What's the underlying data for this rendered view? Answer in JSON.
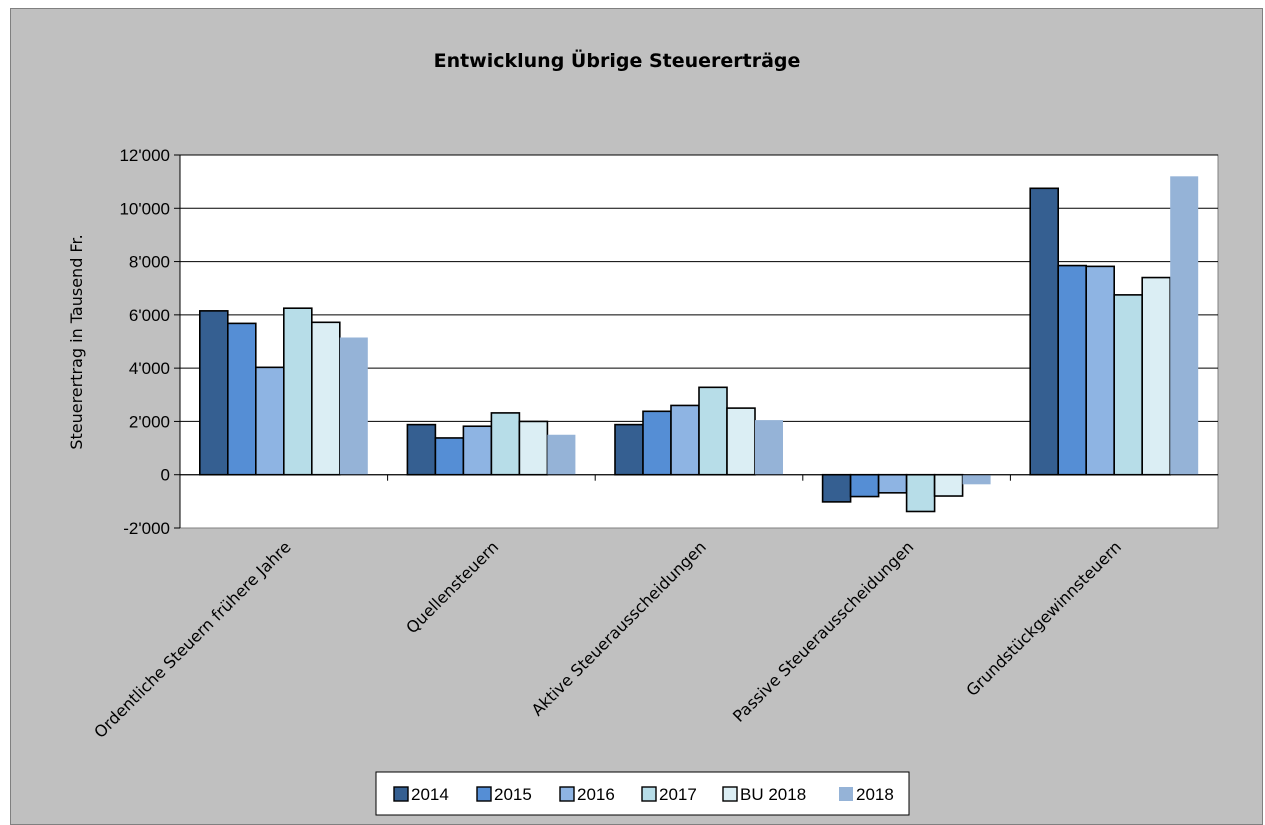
{
  "chart_data": {
    "type": "bar",
    "title": "Entwicklung Übrige Steuererträge",
    "ylabel": "Steuerertrag in Tausend Fr.",
    "xlabel": "",
    "ylim": [
      -2000,
      12000
    ],
    "yticks": [
      -2000,
      0,
      2000,
      4000,
      6000,
      8000,
      10000,
      12000
    ],
    "ytick_labels": [
      "-2'000",
      "0",
      "2'000",
      "4'000",
      "6'000",
      "8'000",
      "10'000",
      "12'000"
    ],
    "categories": [
      "Ordentliche Steuern frühere Jahre",
      "Quellensteuern",
      "Aktive Steuerausscheidungen",
      "Passive Steuerausscheidungen",
      "Grundstückgewinnsteuern"
    ],
    "series": [
      {
        "name": "2014",
        "color": "#355f91",
        "outline": true,
        "values": [
          6150,
          1880,
          1880,
          -1020,
          10750
        ]
      },
      {
        "name": "2015",
        "color": "#558ed5",
        "outline": true,
        "values": [
          5680,
          1380,
          2380,
          -820,
          7850
        ]
      },
      {
        "name": "2016",
        "color": "#8eb4e3",
        "outline": true,
        "values": [
          4030,
          1820,
          2600,
          -680,
          7820
        ]
      },
      {
        "name": "2017",
        "color": "#b7dde8",
        "outline": true,
        "values": [
          6250,
          2320,
          3280,
          -1380,
          6750
        ]
      },
      {
        "name": "BU 2018",
        "color": "#dbeef4",
        "outline": true,
        "values": [
          5720,
          2000,
          2500,
          -800,
          7400
        ]
      },
      {
        "name": "2018",
        "color": "#95b3d7",
        "outline": false,
        "values": [
          5150,
          1500,
          2050,
          -360,
          11200
        ]
      }
    ],
    "grid": true,
    "legend_position": "bottom",
    "plot_background": "#ffffff",
    "chart_background": "#c0c0c0"
  }
}
